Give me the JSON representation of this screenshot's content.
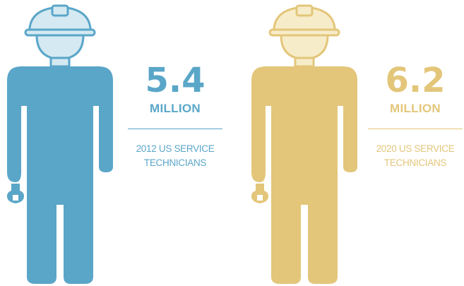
{
  "colors": {
    "blue": "#5aa6c8",
    "blue_light": "#d4e9f2",
    "gold": "#e3c67a",
    "gold_light": "#f7ecc9"
  },
  "stat_2012": {
    "value": "5.4",
    "unit": "MILLION",
    "caption_line1": "2012 US SERVICE",
    "caption_line2": "TECHNICIANS",
    "icon": "technician-icon"
  },
  "stat_2020": {
    "value": "6.2",
    "unit": "MILLION",
    "caption_line1": "2020 US SERVICE",
    "caption_line2": "TECHNICIANS",
    "icon": "technician-icon"
  }
}
